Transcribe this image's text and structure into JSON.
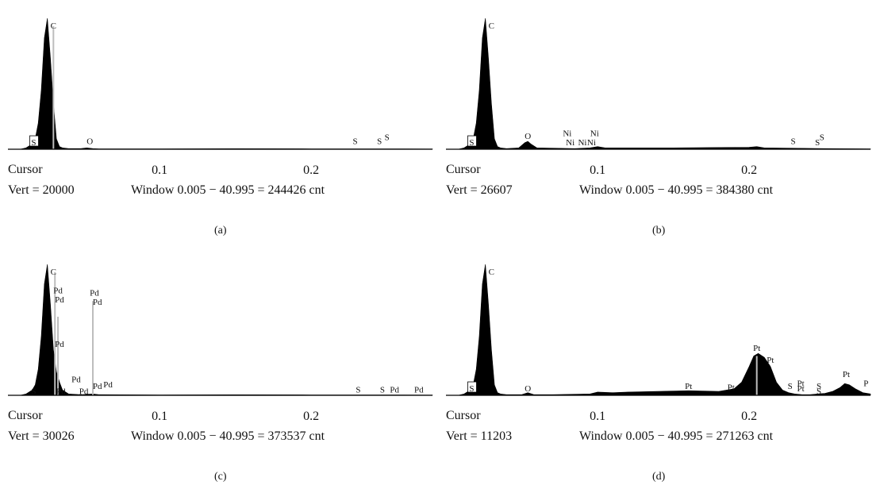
{
  "panels": [
    {
      "id": "a",
      "cursor_label": "Cursor",
      "vert_text": "Vert = 20000",
      "window_text": "Window 0.005 − 40.995 = 244426 cnt",
      "caption": "(a)"
    },
    {
      "id": "b",
      "cursor_label": "Cursor",
      "vert_text": "Vert = 26607",
      "window_text": "Window 0.005 − 40.995 = 384380 cnt",
      "caption": "(b)"
    },
    {
      "id": "c",
      "cursor_label": "Cursor",
      "vert_text": "Vert = 30026",
      "window_text": "Window 0.005 − 40.995 = 373537 cnt",
      "caption": "(c)"
    },
    {
      "id": "d",
      "cursor_label": "Cursor",
      "vert_text": "Vert = 11203",
      "window_text": "Window 0.005 − 40.995 = 271263 cnt",
      "caption": "(d)"
    }
  ],
  "colors": {
    "spectrum": "#000000",
    "marker_line": "#bdbdbd",
    "text": "#111111"
  },
  "chart_data": [
    {
      "type": "area",
      "panel": "a",
      "x_ticks": [
        0.1,
        0.2
      ],
      "xlim": [
        0,
        0.28
      ],
      "ylim": [
        0,
        1
      ],
      "x": [
        0.008,
        0.012,
        0.016,
        0.018,
        0.02,
        0.022,
        0.024,
        0.026,
        0.028,
        0.03,
        0.032,
        0.034,
        0.036,
        0.04,
        0.048,
        0.052,
        0.056,
        0.06,
        0.1,
        0.15,
        0.2,
        0.25,
        0.28
      ],
      "y": [
        0.0,
        0.01,
        0.04,
        0.08,
        0.2,
        0.45,
        0.85,
        1.0,
        0.7,
        0.35,
        0.08,
        0.02,
        0.01,
        0.005,
        0.005,
        0.01,
        0.005,
        0.003,
        0.003,
        0.004,
        0.003,
        0.003,
        0.002
      ],
      "peak_labels": [
        {
          "text": "C",
          "x": 0.03,
          "h": 0.92
        },
        {
          "text": "S",
          "x": 0.017,
          "h": 0.03,
          "boxed": true
        },
        {
          "text": "O",
          "x": 0.054,
          "h": 0.04
        },
        {
          "text": "S",
          "x": 0.229,
          "h": 0.04
        },
        {
          "text": "S",
          "x": 0.245,
          "h": 0.04
        },
        {
          "text": "S",
          "x": 0.25,
          "h": 0.07
        }
      ],
      "marker_lines": [
        {
          "x": 0.03,
          "h": 0.94
        }
      ]
    },
    {
      "type": "area",
      "panel": "b",
      "x_ticks": [
        0.1,
        0.2
      ],
      "xlim": [
        0,
        0.28
      ],
      "ylim": [
        0,
        1
      ],
      "x": [
        0.008,
        0.012,
        0.016,
        0.018,
        0.02,
        0.022,
        0.024,
        0.026,
        0.028,
        0.03,
        0.032,
        0.034,
        0.036,
        0.04,
        0.048,
        0.052,
        0.054,
        0.056,
        0.06,
        0.085,
        0.095,
        0.1,
        0.105,
        0.15,
        0.2,
        0.205,
        0.21,
        0.25,
        0.28
      ],
      "y": [
        0.0,
        0.01,
        0.04,
        0.08,
        0.2,
        0.45,
        0.85,
        1.0,
        0.7,
        0.35,
        0.08,
        0.02,
        0.01,
        0.005,
        0.01,
        0.05,
        0.06,
        0.04,
        0.01,
        0.005,
        0.01,
        0.02,
        0.01,
        0.01,
        0.015,
        0.02,
        0.01,
        0.005,
        0.003
      ],
      "peak_labels": [
        {
          "text": "C",
          "x": 0.03,
          "h": 0.92
        },
        {
          "text": "S",
          "x": 0.017,
          "h": 0.03,
          "boxed": true
        },
        {
          "text": "O",
          "x": 0.054,
          "h": 0.08
        },
        {
          "text": "Ni",
          "x": 0.08,
          "h": 0.1
        },
        {
          "text": "Ni",
          "x": 0.082,
          "h": 0.03
        },
        {
          "text": "Ni",
          "x": 0.09,
          "h": 0.03
        },
        {
          "text": "Ni",
          "x": 0.096,
          "h": 0.03
        },
        {
          "text": "Ni",
          "x": 0.098,
          "h": 0.1
        },
        {
          "text": "S",
          "x": 0.229,
          "h": 0.04
        },
        {
          "text": "S",
          "x": 0.245,
          "h": 0.03
        },
        {
          "text": "S",
          "x": 0.248,
          "h": 0.07
        }
      ],
      "marker_lines": []
    },
    {
      "type": "area",
      "panel": "c",
      "x_ticks": [
        0.1,
        0.2
      ],
      "xlim": [
        0,
        0.28
      ],
      "ylim": [
        0,
        1
      ],
      "x": [
        0.008,
        0.012,
        0.016,
        0.018,
        0.02,
        0.022,
        0.024,
        0.026,
        0.028,
        0.03,
        0.032,
        0.034,
        0.036,
        0.04,
        0.048,
        0.056,
        0.06,
        0.1,
        0.15,
        0.2,
        0.25,
        0.28
      ],
      "y": [
        0.0,
        0.01,
        0.04,
        0.08,
        0.2,
        0.45,
        0.85,
        1.0,
        0.7,
        0.35,
        0.18,
        0.1,
        0.04,
        0.01,
        0.005,
        0.01,
        0.005,
        0.003,
        0.004,
        0.003,
        0.003,
        0.002
      ],
      "peak_labels": [
        {
          "text": "C",
          "x": 0.03,
          "h": 0.92
        },
        {
          "text": "Pd",
          "x": 0.033,
          "h": 0.78
        },
        {
          "text": "Pd",
          "x": 0.034,
          "h": 0.71
        },
        {
          "text": "Pd",
          "x": 0.034,
          "h": 0.37
        },
        {
          "text": "Pd",
          "x": 0.035,
          "h": 0.01
        },
        {
          "text": "Pd",
          "x": 0.057,
          "h": 0.76
        },
        {
          "text": "Pd",
          "x": 0.059,
          "h": 0.69
        },
        {
          "text": "S",
          "x": 0.017,
          "h": 0.01
        },
        {
          "text": "Pd",
          "x": 0.045,
          "h": 0.1
        },
        {
          "text": "Pd",
          "x": 0.05,
          "h": 0.01
        },
        {
          "text": "Pd",
          "x": 0.059,
          "h": 0.05
        },
        {
          "text": "Pd",
          "x": 0.066,
          "h": 0.06
        },
        {
          "text": "S",
          "x": 0.231,
          "h": 0.02
        },
        {
          "text": "S",
          "x": 0.247,
          "h": 0.02
        },
        {
          "text": "Pd",
          "x": 0.255,
          "h": 0.02
        },
        {
          "text": "Pd",
          "x": 0.271,
          "h": 0.02
        }
      ],
      "marker_lines": [
        {
          "x": 0.031,
          "h": 0.94
        },
        {
          "x": 0.033,
          "h": 0.6
        },
        {
          "x": 0.056,
          "h": 0.72
        }
      ]
    },
    {
      "type": "area",
      "panel": "d",
      "x_ticks": [
        0.1,
        0.2
      ],
      "xlim": [
        0,
        0.28
      ],
      "ylim": [
        0,
        1
      ],
      "x": [
        0.008,
        0.012,
        0.016,
        0.018,
        0.02,
        0.022,
        0.024,
        0.026,
        0.028,
        0.03,
        0.032,
        0.034,
        0.036,
        0.04,
        0.05,
        0.054,
        0.058,
        0.07,
        0.095,
        0.1,
        0.11,
        0.12,
        0.14,
        0.16,
        0.18,
        0.19,
        0.195,
        0.2,
        0.203,
        0.206,
        0.21,
        0.214,
        0.218,
        0.222,
        0.226,
        0.23,
        0.235,
        0.24,
        0.245,
        0.25,
        0.255,
        0.26,
        0.263,
        0.266,
        0.27,
        0.275,
        0.28
      ],
      "y": [
        0.0,
        0.01,
        0.04,
        0.08,
        0.2,
        0.45,
        0.85,
        1.0,
        0.7,
        0.35,
        0.08,
        0.02,
        0.01,
        0.005,
        0.005,
        0.02,
        0.005,
        0.005,
        0.01,
        0.025,
        0.02,
        0.025,
        0.03,
        0.035,
        0.03,
        0.05,
        0.1,
        0.22,
        0.3,
        0.32,
        0.29,
        0.22,
        0.1,
        0.04,
        0.02,
        0.01,
        0.005,
        0.005,
        0.01,
        0.015,
        0.03,
        0.06,
        0.09,
        0.08,
        0.05,
        0.02,
        0.01
      ],
      "peak_labels": [
        {
          "text": "C",
          "x": 0.03,
          "h": 0.92
        },
        {
          "text": "S",
          "x": 0.017,
          "h": 0.03,
          "boxed": true
        },
        {
          "text": "O",
          "x": 0.054,
          "h": 0.03
        },
        {
          "text": "Pt",
          "x": 0.16,
          "h": 0.05
        },
        {
          "text": "Pt",
          "x": 0.188,
          "h": 0.04
        },
        {
          "text": "Pt",
          "x": 0.205,
          "h": 0.34
        },
        {
          "text": "Pt",
          "x": 0.214,
          "h": 0.25
        },
        {
          "text": "S",
          "x": 0.227,
          "h": 0.05
        },
        {
          "text": "Pt",
          "x": 0.234,
          "h": 0.07
        },
        {
          "text": "Pt",
          "x": 0.234,
          "h": 0.03
        },
        {
          "text": "S",
          "x": 0.246,
          "h": 0.05
        },
        {
          "text": "S",
          "x": 0.246,
          "h": 0.01
        },
        {
          "text": "Pt",
          "x": 0.264,
          "h": 0.14
        },
        {
          "text": "P",
          "x": 0.277,
          "h": 0.07
        }
      ],
      "marker_lines": [
        {
          "x": 0.205,
          "h": 0.3
        }
      ]
    }
  ]
}
